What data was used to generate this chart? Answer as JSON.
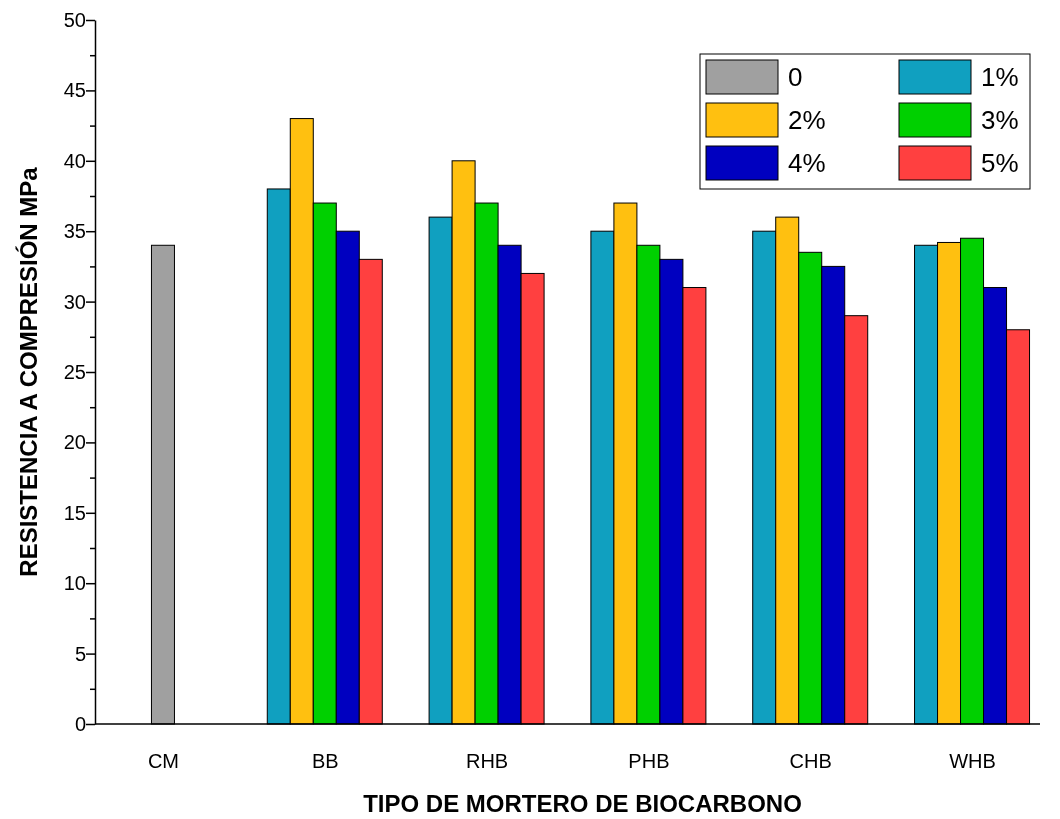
{
  "chart_data": {
    "type": "bar",
    "xlabel": "TIPO DE MORTERO DE BIOCARBONO",
    "ylabel": "RESISTENCIA A COMPRESIÓN  MPa",
    "categories": [
      "CM",
      "BB",
      "RHB",
      "PHB",
      "CHB",
      "WHB"
    ],
    "series": [
      {
        "name": "0",
        "color": "#a0a0a0",
        "values": [
          34,
          null,
          null,
          null,
          null,
          null
        ]
      },
      {
        "name": "1%",
        "color": "#10a0c0",
        "values": [
          null,
          38,
          36,
          35,
          35,
          34
        ]
      },
      {
        "name": "2%",
        "color": "#ffc010",
        "values": [
          null,
          43,
          40,
          37,
          36,
          34.2
        ]
      },
      {
        "name": "3%",
        "color": "#00d000",
        "values": [
          null,
          37,
          37,
          34,
          33.5,
          34.5
        ]
      },
      {
        "name": "4%",
        "color": "#0000c0",
        "values": [
          null,
          35,
          34,
          33,
          32.5,
          31
        ]
      },
      {
        "name": "5%",
        "color": "#ff4040",
        "values": [
          null,
          33,
          32,
          31,
          29,
          28
        ]
      }
    ],
    "ylim": [
      0,
      50
    ],
    "yticks": [
      0,
      {
        "value": 2.5,
        "label": null
      },
      5,
      {
        "value": 7.5,
        "label": null
      },
      10,
      {
        "value": 12.5,
        "label": null
      },
      15,
      {
        "value": 17.5,
        "label": null
      },
      20,
      {
        "value": 22.5,
        "label": null
      },
      25,
      {
        "value": 27.5,
        "label": null
      },
      30,
      {
        "value": 32.5,
        "label": null
      },
      35,
      {
        "value": 37.5,
        "label": null
      },
      40,
      {
        "value": 42.5,
        "label": null
      },
      45,
      {
        "value": 47.5,
        "label": null
      },
      50
    ],
    "grid": false,
    "legend": "top right"
  }
}
